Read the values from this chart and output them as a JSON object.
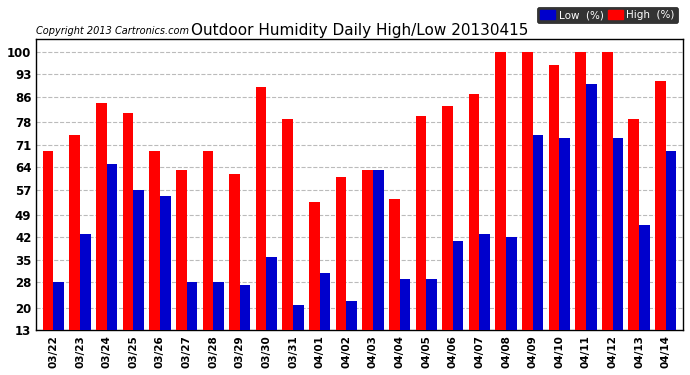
{
  "title": "Outdoor Humidity Daily High/Low 20130415",
  "copyright": "Copyright 2013 Cartronics.com",
  "categories": [
    "03/22",
    "03/23",
    "03/24",
    "03/25",
    "03/26",
    "03/27",
    "03/28",
    "03/29",
    "03/30",
    "03/31",
    "04/01",
    "04/02",
    "04/03",
    "04/04",
    "04/05",
    "04/06",
    "04/07",
    "04/08",
    "04/09",
    "04/10",
    "04/11",
    "04/12",
    "04/13",
    "04/14"
  ],
  "high_values": [
    69,
    74,
    84,
    81,
    69,
    63,
    69,
    62,
    89,
    79,
    53,
    61,
    63,
    54,
    80,
    83,
    87,
    100,
    100,
    96,
    100,
    100,
    79,
    91
  ],
  "low_values": [
    28,
    43,
    65,
    57,
    55,
    28,
    28,
    27,
    36,
    21,
    31,
    22,
    63,
    29,
    29,
    41,
    43,
    42,
    74,
    73,
    90,
    73,
    46,
    69
  ],
  "high_color": "#ff0000",
  "low_color": "#0000cc",
  "background_color": "#ffffff",
  "yticks": [
    13,
    20,
    28,
    35,
    42,
    49,
    57,
    64,
    71,
    78,
    86,
    93,
    100
  ],
  "ymin": 13,
  "ymax": 104,
  "bar_width": 0.4,
  "grid_color": "#bbbbbb",
  "legend_low_label": "Low  (%)",
  "legend_high_label": "High  (%)"
}
